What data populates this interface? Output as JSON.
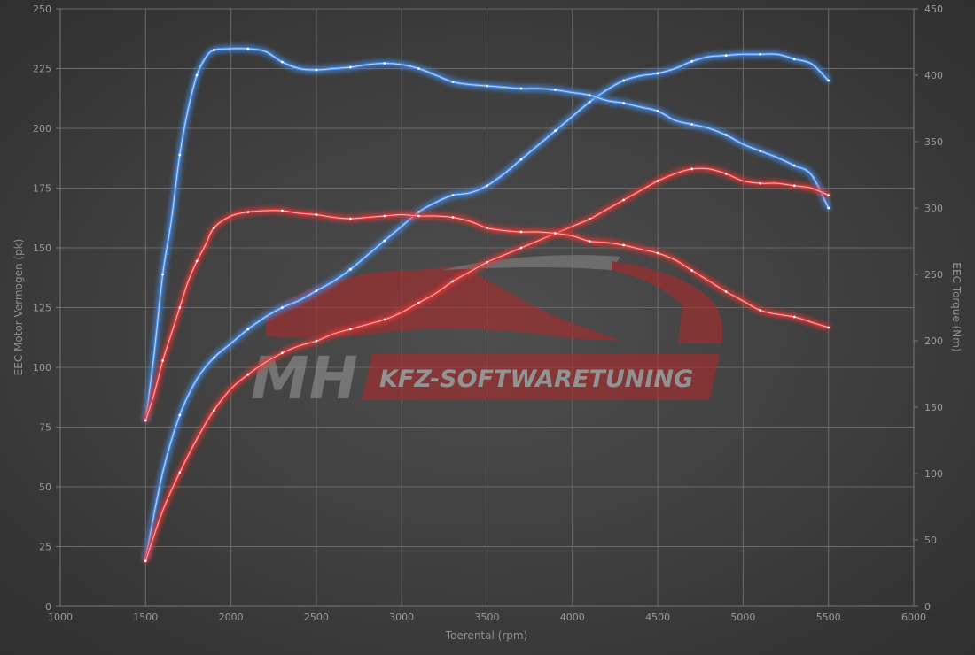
{
  "chart_data": {
    "type": "line",
    "xlabel": "Toerental (rpm)",
    "ylabel_left": "EEC Motor Vermogen (pk)",
    "ylabel_right": "EEC Torque (Nm)",
    "xlim": [
      1000,
      6000
    ],
    "ylim_left": [
      0,
      250
    ],
    "ylim_right": [
      0,
      450
    ],
    "x_ticks": [
      1000,
      1500,
      2000,
      2500,
      3000,
      3500,
      4000,
      4500,
      5000,
      5500,
      6000
    ],
    "y_left_ticks": [
      0,
      25,
      50,
      75,
      100,
      125,
      150,
      175,
      200,
      225,
      250
    ],
    "y_right_ticks": [
      0,
      50,
      100,
      150,
      200,
      250,
      300,
      350,
      400,
      450
    ],
    "grid": true,
    "series": [
      {
        "axis": "left",
        "color": "#4a8ee8",
        "points": [
          [
            1500,
            20
          ],
          [
            1600,
            56
          ],
          [
            1700,
            80
          ],
          [
            1800,
            95
          ],
          [
            1900,
            104
          ],
          [
            2000,
            110
          ],
          [
            2100,
            116
          ],
          [
            2200,
            121
          ],
          [
            2300,
            125
          ],
          [
            2400,
            128
          ],
          [
            2500,
            132
          ],
          [
            2600,
            136
          ],
          [
            2700,
            141
          ],
          [
            2800,
            147
          ],
          [
            2900,
            153
          ],
          [
            3000,
            159
          ],
          [
            3100,
            165
          ],
          [
            3200,
            169
          ],
          [
            3300,
            172
          ],
          [
            3400,
            173
          ],
          [
            3500,
            176
          ],
          [
            3600,
            181
          ],
          [
            3700,
            187
          ],
          [
            3800,
            193
          ],
          [
            3900,
            199
          ],
          [
            4000,
            205
          ],
          [
            4100,
            211
          ],
          [
            4200,
            216
          ],
          [
            4300,
            220
          ],
          [
            4400,
            222
          ],
          [
            4500,
            223
          ],
          [
            4600,
            225
          ],
          [
            4700,
            228
          ],
          [
            4800,
            230
          ],
          [
            4900,
            230.5
          ],
          [
            5000,
            231
          ],
          [
            5100,
            231
          ],
          [
            5200,
            231
          ],
          [
            5300,
            229
          ],
          [
            5400,
            227
          ],
          [
            5500,
            220
          ]
        ]
      },
      {
        "axis": "right",
        "color": "#4a8ee8",
        "points": [
          [
            1500,
            140
          ],
          [
            1550,
            190
          ],
          [
            1600,
            250
          ],
          [
            1650,
            290
          ],
          [
            1700,
            340
          ],
          [
            1750,
            375
          ],
          [
            1800,
            400
          ],
          [
            1850,
            413
          ],
          [
            1900,
            419
          ],
          [
            2000,
            420
          ],
          [
            2100,
            420
          ],
          [
            2200,
            418
          ],
          [
            2300,
            410
          ],
          [
            2400,
            405
          ],
          [
            2500,
            404
          ],
          [
            2600,
            405
          ],
          [
            2700,
            406
          ],
          [
            2800,
            408
          ],
          [
            2900,
            409
          ],
          [
            3000,
            408
          ],
          [
            3100,
            405
          ],
          [
            3200,
            400
          ],
          [
            3300,
            395
          ],
          [
            3400,
            393
          ],
          [
            3500,
            392
          ],
          [
            3600,
            391
          ],
          [
            3700,
            390
          ],
          [
            3800,
            390
          ],
          [
            3900,
            389
          ],
          [
            4000,
            387
          ],
          [
            4100,
            385
          ],
          [
            4200,
            381
          ],
          [
            4300,
            379
          ],
          [
            4400,
            376
          ],
          [
            4500,
            373
          ],
          [
            4600,
            366
          ],
          [
            4700,
            363
          ],
          [
            4800,
            360
          ],
          [
            4900,
            355
          ],
          [
            5000,
            348
          ],
          [
            5100,
            343
          ],
          [
            5200,
            338
          ],
          [
            5300,
            332
          ],
          [
            5400,
            325
          ],
          [
            5500,
            300
          ]
        ]
      },
      {
        "axis": "left",
        "color": "#e03a3a",
        "points": [
          [
            1500,
            19
          ],
          [
            1600,
            40
          ],
          [
            1700,
            56
          ],
          [
            1800,
            70
          ],
          [
            1900,
            82
          ],
          [
            2000,
            91
          ],
          [
            2100,
            97
          ],
          [
            2200,
            102
          ],
          [
            2300,
            106
          ],
          [
            2400,
            109
          ],
          [
            2500,
            111
          ],
          [
            2600,
            114
          ],
          [
            2700,
            116
          ],
          [
            2800,
            118
          ],
          [
            2900,
            120
          ],
          [
            3000,
            123
          ],
          [
            3100,
            127
          ],
          [
            3200,
            131
          ],
          [
            3300,
            136
          ],
          [
            3400,
            140
          ],
          [
            3500,
            144
          ],
          [
            3600,
            147
          ],
          [
            3700,
            150
          ],
          [
            3800,
            153
          ],
          [
            3900,
            156
          ],
          [
            4000,
            159
          ],
          [
            4100,
            162
          ],
          [
            4200,
            166
          ],
          [
            4300,
            170
          ],
          [
            4400,
            174
          ],
          [
            4500,
            178
          ],
          [
            4600,
            181
          ],
          [
            4700,
            183
          ],
          [
            4800,
            183
          ],
          [
            4900,
            181
          ],
          [
            5000,
            178
          ],
          [
            5100,
            177
          ],
          [
            5200,
            177
          ],
          [
            5300,
            176
          ],
          [
            5400,
            175
          ],
          [
            5500,
            172
          ]
        ]
      },
      {
        "axis": "right",
        "color": "#e03a3a",
        "points": [
          [
            1500,
            140
          ],
          [
            1550,
            160
          ],
          [
            1600,
            185
          ],
          [
            1650,
            205
          ],
          [
            1700,
            225
          ],
          [
            1750,
            245
          ],
          [
            1800,
            260
          ],
          [
            1850,
            272
          ],
          [
            1900,
            285
          ],
          [
            2000,
            294
          ],
          [
            2100,
            297
          ],
          [
            2200,
            298
          ],
          [
            2300,
            298
          ],
          [
            2400,
            296
          ],
          [
            2500,
            295
          ],
          [
            2600,
            293
          ],
          [
            2700,
            292
          ],
          [
            2800,
            293
          ],
          [
            2900,
            294
          ],
          [
            3000,
            295
          ],
          [
            3100,
            294
          ],
          [
            3200,
            294
          ],
          [
            3300,
            293
          ],
          [
            3400,
            290
          ],
          [
            3500,
            285
          ],
          [
            3600,
            283
          ],
          [
            3700,
            282
          ],
          [
            3800,
            282
          ],
          [
            3900,
            281
          ],
          [
            4000,
            279
          ],
          [
            4100,
            275
          ],
          [
            4200,
            274
          ],
          [
            4300,
            272
          ],
          [
            4400,
            269
          ],
          [
            4500,
            266
          ],
          [
            4600,
            261
          ],
          [
            4700,
            253
          ],
          [
            4800,
            245
          ],
          [
            4900,
            237
          ],
          [
            5000,
            230
          ],
          [
            5100,
            223
          ],
          [
            5200,
            220
          ],
          [
            5300,
            218
          ],
          [
            5400,
            214
          ],
          [
            5500,
            210
          ]
        ]
      }
    ]
  },
  "logo": {
    "brand": "MH",
    "tagline": "KFZ-SOFTWARETUNING"
  },
  "colors": {
    "background": "#3f3f3f",
    "power_stock": "#e03a3a",
    "power_tuned": "#4a8ee8",
    "logo_red": "#b52828"
  }
}
